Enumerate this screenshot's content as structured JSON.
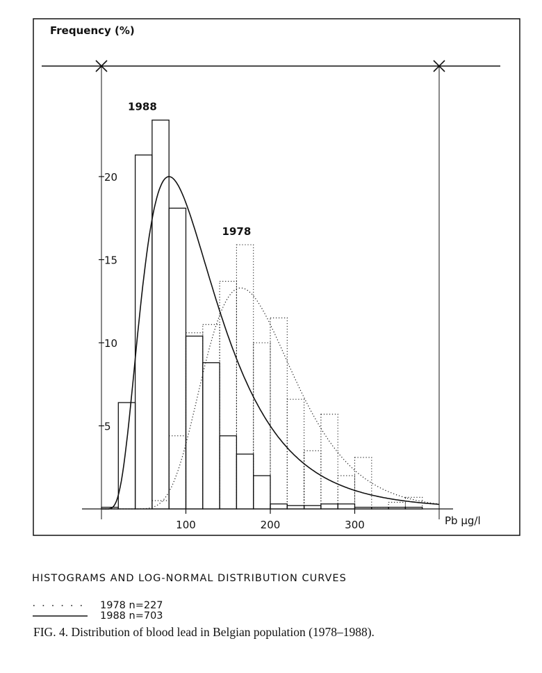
{
  "chart_data": {
    "type": "bar",
    "ylabel": "Frequency (%)",
    "xlabel": "Pb µg/l",
    "xlim": [
      0,
      400
    ],
    "ylim": [
      0,
      25
    ],
    "x_ticks": [
      100,
      200,
      300
    ],
    "y_ticks": [
      5,
      10,
      15,
      20
    ],
    "bin_width": 20,
    "bin_starts": [
      0,
      20,
      40,
      60,
      80,
      100,
      120,
      140,
      160,
      180,
      200,
      220,
      240,
      260,
      280,
      300,
      320,
      340,
      360,
      380
    ],
    "series": [
      {
        "name": "1988",
        "n_label": "1988 n=703",
        "style": "solid",
        "values": [
          0.1,
          6.4,
          21.3,
          23.4,
          18.1,
          10.4,
          8.8,
          4.4,
          3.3,
          2.0,
          0.3,
          0.2,
          0.2,
          0.3,
          0.3,
          0.1,
          0.1,
          0.1,
          0.1,
          0.0
        ],
        "lognormal_peak": {
          "x": 80,
          "y": 20.0
        }
      },
      {
        "name": "1978",
        "n_label": "1978 n=227",
        "style": "dotted",
        "values": [
          0.0,
          0.0,
          0.0,
          0.5,
          4.4,
          10.6,
          11.1,
          13.7,
          15.9,
          10.0,
          11.5,
          6.6,
          3.5,
          5.7,
          2.0,
          3.1,
          0.1,
          0.4,
          0.7,
          0.0
        ],
        "lognormal_peak": {
          "x": 165,
          "y": 13.3
        }
      }
    ]
  },
  "caption": {
    "heading": "HISTOGRAMS AND LOG-NORMAL DISTRIBUTION CURVES",
    "figure": "FIG. 4. Distribution of blood lead in Belgian population (1978–1988)."
  }
}
